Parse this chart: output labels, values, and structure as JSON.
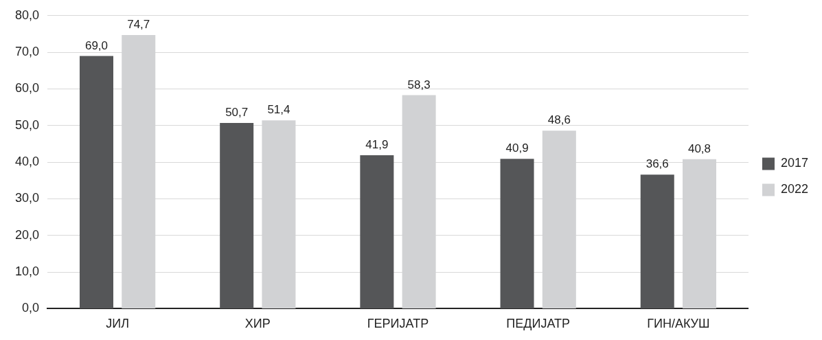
{
  "chart_data": {
    "type": "bar",
    "categories": [
      "ЈИЛ",
      "ХИР",
      "ГЕРИЈАТР",
      "ПЕДИЈАТР",
      "ГИН/АКУШ"
    ],
    "series": [
      {
        "name": "2017",
        "color": "#555658",
        "values": [
          69.0,
          50.7,
          41.9,
          40.9,
          36.6
        ],
        "value_labels": [
          "69,0",
          "50,7",
          "41,9",
          "40,9",
          "36,6"
        ]
      },
      {
        "name": "2022",
        "color": "#d1d2d4",
        "values": [
          74.7,
          51.4,
          58.3,
          48.6,
          40.8
        ],
        "value_labels": [
          "74,7",
          "51,4",
          "58,3",
          "48,6",
          "40,8"
        ]
      }
    ],
    "ylim": [
      0,
      80
    ],
    "yticks": [
      {
        "value": 0,
        "label": "0,0"
      },
      {
        "value": 10,
        "label": "10,0"
      },
      {
        "value": 20,
        "label": "20,0"
      },
      {
        "value": 30,
        "label": "30,0"
      },
      {
        "value": 40,
        "label": "40,0"
      },
      {
        "value": 50,
        "label": "50,0"
      },
      {
        "value": 60,
        "label": "60,0"
      },
      {
        "value": 70,
        "label": "70,0"
      },
      {
        "value": 80,
        "label": "80,0"
      }
    ],
    "grid": "y",
    "legend": "right"
  }
}
